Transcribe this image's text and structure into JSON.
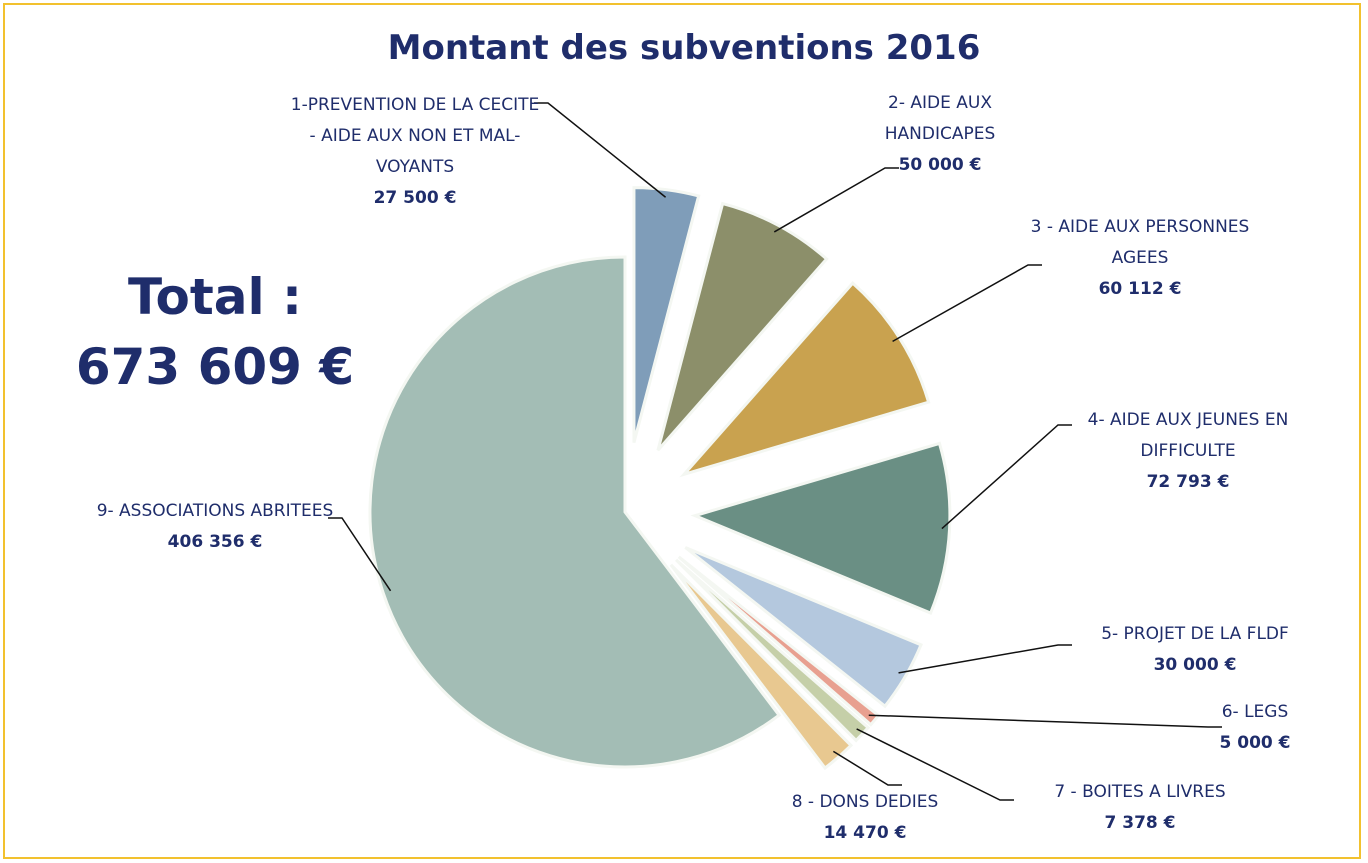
{
  "chart_data": {
    "type": "pie",
    "title": "Montant des subventions 2016",
    "annotations": [
      "Total :",
      "673 609 €"
    ],
    "categories": [
      "1-PREVENTION DE LA CECITE - AIDE AUX NON ET MAL-VOYANTS",
      "2- AIDE AUX HANDICAPES",
      "3 - AIDE AUX PERSONNES AGEES",
      "4- AIDE AUX JEUNES EN DIFFICULTE",
      "5- PROJET DE LA FLDF",
      "6- LEGS",
      "7 - BOITES A LIVRES",
      "8 - DONS DEDIES",
      "9- ASSOCIATIONS ABRITEES"
    ],
    "values": [
      27500,
      50000,
      60112,
      72793,
      30000,
      5000,
      7378,
      14470,
      406356
    ],
    "value_labels": [
      "27 500 €",
      "50 000 €",
      "60 112 €",
      "72 793 €",
      "30 000 €",
      "5 000 €",
      "7 378 €",
      "14 470 €",
      "406 356 €"
    ],
    "colors": [
      "#7f9db9",
      "#8c8f6a",
      "#c9a24f",
      "#6a8f84",
      "#b4c8de",
      "#e8a090",
      "#c5cfa8",
      "#e8c890",
      "#a3bdb5"
    ]
  }
}
